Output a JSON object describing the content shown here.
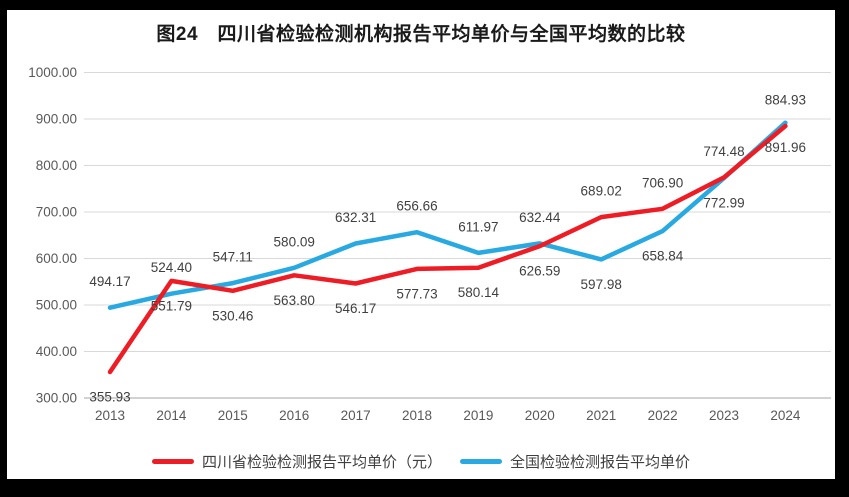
{
  "title": "图24　四川省检验检测机构报告平均单价与全国平均数的比较",
  "colors": {
    "sichuan_red": "#ee1c25",
    "national_blue": "#29a9e1",
    "gridline": "#d9d9d9",
    "axis_line": "#a6a6a6",
    "tick_text": "#595959",
    "value_label_text": "#404040",
    "frame": "#000000",
    "background": "#ffffff"
  },
  "chart_data": {
    "type": "line",
    "categories": [
      "2013",
      "2014",
      "2015",
      "2016",
      "2017",
      "2018",
      "2019",
      "2020",
      "2021",
      "2022",
      "2023",
      "2024"
    ],
    "series": [
      {
        "name": "四川省检验检测报告平均单价（元）",
        "color_key": "sichuan_red",
        "values": [
          355.93,
          551.79,
          530.46,
          563.8,
          546.17,
          577.73,
          580.14,
          626.59,
          689.02,
          706.9,
          774.48,
          884.93
        ],
        "label_positions": [
          "below",
          "below",
          "below",
          "below",
          "below",
          "below",
          "below",
          "below",
          "above",
          "above",
          "above",
          "above"
        ]
      },
      {
        "name": "全国检验检测报告平均单价",
        "color_key": "national_blue",
        "values": [
          494.17,
          524.4,
          547.11,
          580.09,
          632.31,
          656.66,
          611.97,
          632.44,
          597.98,
          658.84,
          772.99,
          891.96
        ],
        "label_positions": [
          "above",
          "above",
          "above",
          "above",
          "above",
          "above",
          "above",
          "above",
          "below",
          "below",
          "below",
          "below"
        ]
      }
    ],
    "ylim": [
      300,
      1000
    ],
    "ytick_step": 100,
    "ytick_format": "2-decimals",
    "value_label_format": "2-decimals",
    "grid": true,
    "legend_position": "bottom",
    "draw_order": "blue-under-red"
  }
}
